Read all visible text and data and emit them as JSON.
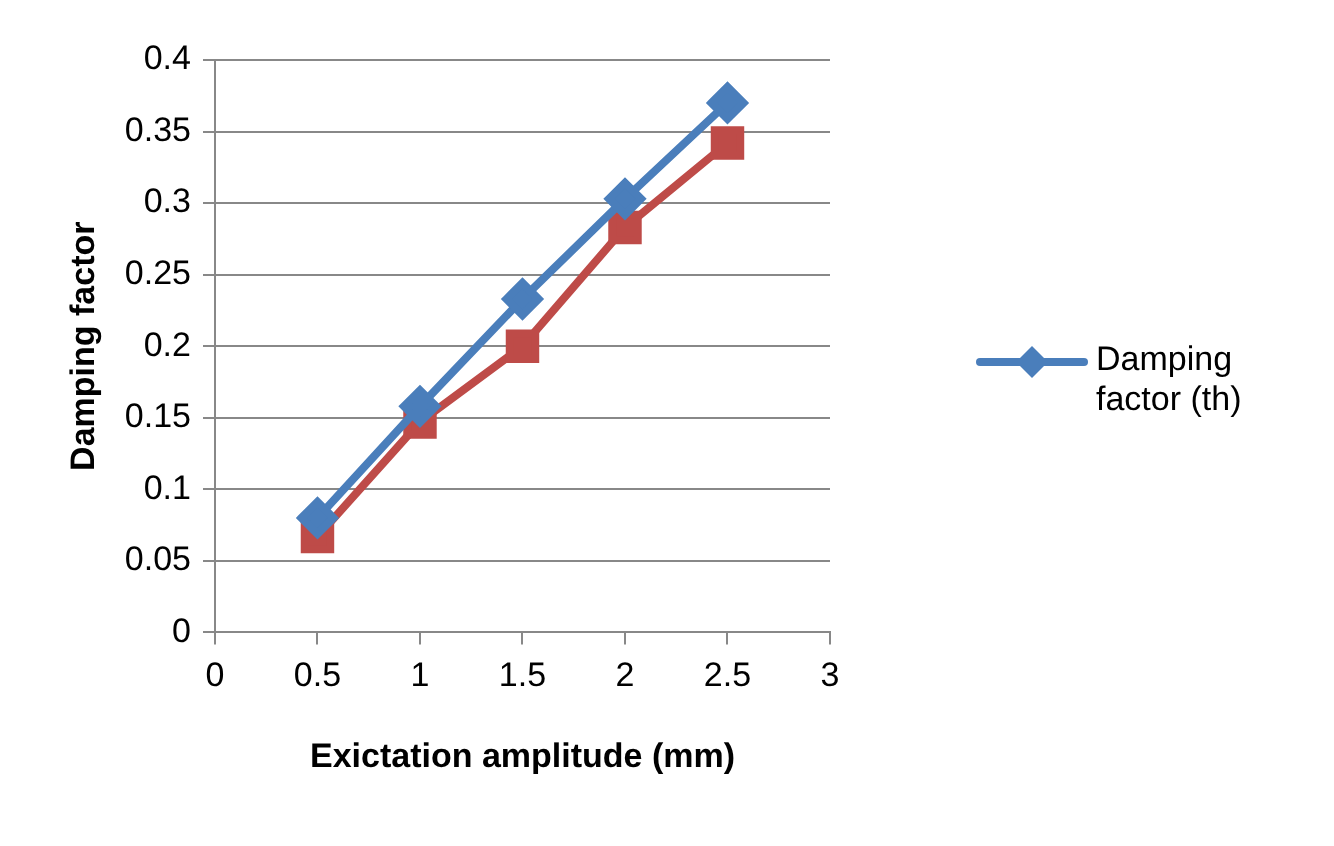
{
  "chart_data": {
    "type": "line",
    "xlabel": "Exictation amplitude (mm)",
    "ylabel": "Damping factor",
    "x": [
      0.5,
      1,
      1.5,
      2,
      2.5
    ],
    "series": [
      {
        "name": "Damping factor (th)",
        "color": "#4a7ebb",
        "marker": "diamond",
        "values": [
          0.08,
          0.158,
          0.233,
          0.303,
          0.37
        ]
      },
      {
        "color": "#be4b48",
        "marker": "square",
        "values": [
          0.067,
          0.147,
          0.2,
          0.283,
          0.342
        ]
      }
    ],
    "xlim": [
      0,
      3
    ],
    "xticks": [
      0,
      0.5,
      1,
      1.5,
      2,
      2.5,
      3
    ],
    "ylim": [
      0,
      0.4
    ],
    "yticks": [
      0,
      0.05,
      0.1,
      0.15,
      0.2,
      0.25,
      0.3,
      0.35,
      0.4
    ],
    "grid": "y",
    "legend": "right"
  }
}
